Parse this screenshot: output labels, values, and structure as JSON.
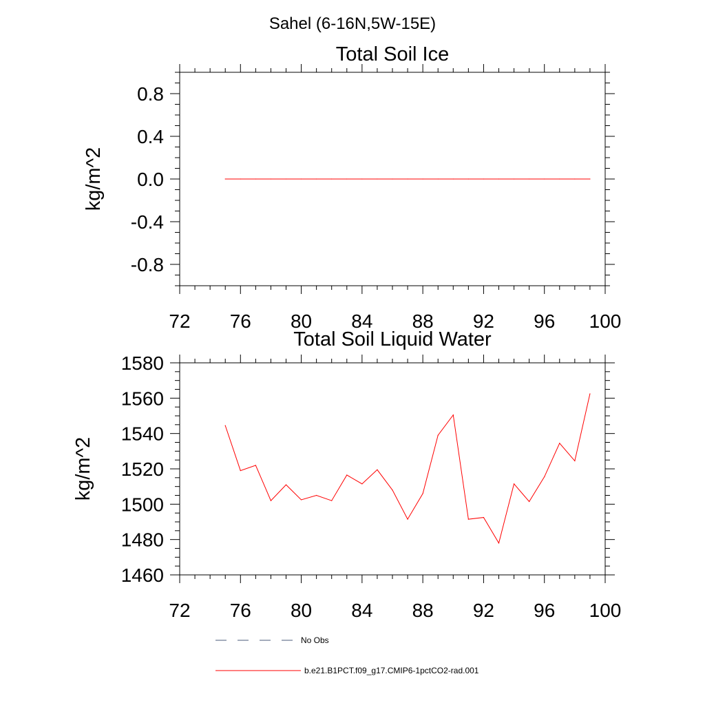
{
  "figure_title": "Sahel (6-16N,5W-15E)",
  "legend": {
    "entries": [
      {
        "label": "No Obs",
        "style": "dashed",
        "color": "#4a5a7a"
      },
      {
        "label": "b.e21.B1PCT.f09_g17.CMIP6-1pctCO2-rad.001",
        "style": "solid",
        "color": "#ff0000"
      }
    ]
  },
  "chart_data": [
    {
      "type": "line",
      "title": "Total Soil Ice",
      "xlabel": "",
      "ylabel": "kg/m^2",
      "xlim": [
        72,
        100
      ],
      "ylim": [
        -1.0,
        1.0
      ],
      "xticks": [
        72,
        76,
        80,
        84,
        88,
        92,
        96,
        100
      ],
      "yticks": [
        0.8,
        0.4,
        0.0,
        -0.4,
        -0.8
      ],
      "ytick_labels": [
        "0.8",
        "0.4",
        "0.0",
        "-0.4",
        "-0.8"
      ],
      "grid": false,
      "series": [
        {
          "name": "b.e21.B1PCT.f09_g17.CMIP6-1pctCO2-rad.001",
          "color": "#ff0000",
          "x": [
            75,
            76,
            77,
            78,
            79,
            80,
            81,
            82,
            83,
            84,
            85,
            86,
            87,
            88,
            89,
            90,
            91,
            92,
            93,
            94,
            95,
            96,
            97,
            98,
            99
          ],
          "y": [
            0,
            0,
            0,
            0,
            0,
            0,
            0,
            0,
            0,
            0,
            0,
            0,
            0,
            0,
            0,
            0,
            0,
            0,
            0,
            0,
            0,
            0,
            0,
            0,
            0
          ]
        }
      ]
    },
    {
      "type": "line",
      "title": "Total Soil Liquid Water",
      "xlabel": "",
      "ylabel": "kg/m^2",
      "xlim": [
        72,
        100
      ],
      "ylim": [
        1460,
        1580
      ],
      "xticks": [
        72,
        76,
        80,
        84,
        88,
        92,
        96,
        100
      ],
      "yticks": [
        1580,
        1560,
        1540,
        1520,
        1500,
        1480,
        1460
      ],
      "ytick_labels": [
        "1580",
        "1560",
        "1540",
        "1520",
        "1500",
        "1480",
        "1460"
      ],
      "grid": false,
      "series": [
        {
          "name": "b.e21.B1PCT.f09_g17.CMIP6-1pctCO2-rad.001",
          "color": "#ff0000",
          "x": [
            75,
            76,
            77,
            78,
            79,
            80,
            81,
            82,
            83,
            84,
            85,
            86,
            87,
            88,
            89,
            90,
            91,
            92,
            93,
            94,
            95,
            96,
            97,
            98,
            99
          ],
          "y": [
            1544.5,
            1519,
            1522,
            1502,
            1511,
            1502.5,
            1505,
            1502,
            1516.5,
            1511.5,
            1519.5,
            1508,
            1491.5,
            1506,
            1539,
            1550.5,
            1491.5,
            1492.5,
            1478,
            1511.5,
            1501.5,
            1515.5,
            1534.5,
            1524.5,
            1562.5
          ]
        }
      ]
    }
  ]
}
